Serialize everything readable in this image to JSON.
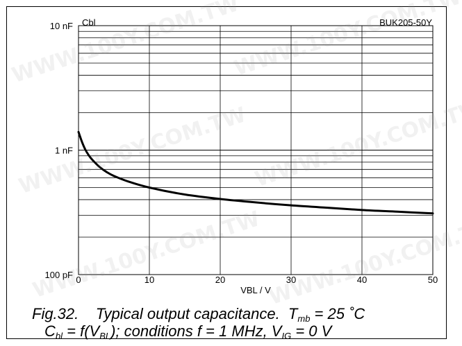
{
  "chart_data": {
    "type": "line",
    "title": "BUK205-50Y",
    "ylabel": "Cbl",
    "xlabel": "VBL / V",
    "xlim": [
      0,
      50
    ],
    "ylim": [
      100,
      10000
    ],
    "yscale": "log",
    "x_ticks": [
      0,
      10,
      20,
      30,
      40,
      50
    ],
    "y_ticks": [
      {
        "value": 100,
        "label": "100 pF"
      },
      {
        "value": 1000,
        "label": "1 nF"
      },
      {
        "value": 10000,
        "label": "10 nF"
      }
    ],
    "grid": true,
    "series": [
      {
        "x": [
          0,
          0.5,
          1,
          1.5,
          2,
          3,
          4,
          5,
          7,
          10,
          15,
          20,
          25,
          30,
          35,
          40,
          45,
          50
        ],
        "y": [
          1400,
          1160,
          1000,
          900,
          830,
          730,
          665,
          620,
          560,
          500,
          440,
          405,
          380,
          360,
          345,
          330,
          320,
          310
        ]
      }
    ]
  },
  "caption": {
    "fig": "Fig.32.",
    "text": "Typical output capacitance.",
    "cond1_pre": "T",
    "cond1_sub": "mb",
    "cond1_post": " = 25 ˚C",
    "line2_a": "C",
    "line2_a_sub": "bl",
    "line2_b": " = f(V",
    "line2_b_sub": "BL",
    "line2_c": "); conditions f = 1 MHz, V",
    "line2_c_sub": "IG",
    "line2_d": " = 0 V"
  },
  "watermark": "WWW.100Y.COM.TW"
}
